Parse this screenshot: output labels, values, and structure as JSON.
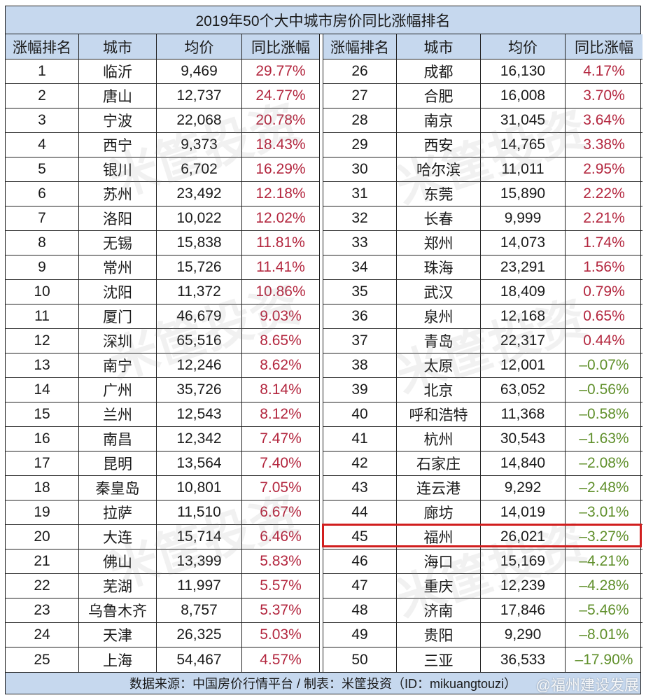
{
  "title": "2019年50个大中城市房价同比涨幅排名",
  "headers": [
    "涨幅排名",
    "城市",
    "均价",
    "同比涨幅"
  ],
  "colors": {
    "header_bg": "#c6d8ee",
    "positive": "#b3263e",
    "negative": "#5f8f2a",
    "highlight_border": "#d11e1e"
  },
  "left_rows": [
    {
      "rank": "1",
      "city": "临沂",
      "price": "9,469",
      "change": "29.77%",
      "sign": "pos"
    },
    {
      "rank": "2",
      "city": "唐山",
      "price": "12,737",
      "change": "24.77%",
      "sign": "pos"
    },
    {
      "rank": "3",
      "city": "宁波",
      "price": "22,068",
      "change": "20.78%",
      "sign": "pos"
    },
    {
      "rank": "4",
      "city": "西宁",
      "price": "9,373",
      "change": "18.43%",
      "sign": "pos"
    },
    {
      "rank": "5",
      "city": "银川",
      "price": "6,702",
      "change": "16.29%",
      "sign": "pos"
    },
    {
      "rank": "6",
      "city": "苏州",
      "price": "23,492",
      "change": "12.18%",
      "sign": "pos"
    },
    {
      "rank": "7",
      "city": "洛阳",
      "price": "10,022",
      "change": "12.02%",
      "sign": "pos"
    },
    {
      "rank": "8",
      "city": "无锡",
      "price": "15,838",
      "change": "11.81%",
      "sign": "pos"
    },
    {
      "rank": "9",
      "city": "常州",
      "price": "15,726",
      "change": "11.41%",
      "sign": "pos"
    },
    {
      "rank": "10",
      "city": "沈阳",
      "price": "11,372",
      "change": "10.86%",
      "sign": "pos"
    },
    {
      "rank": "11",
      "city": "厦门",
      "price": "46,679",
      "change": "9.03%",
      "sign": "pos"
    },
    {
      "rank": "12",
      "city": "深圳",
      "price": "65,516",
      "change": "8.65%",
      "sign": "pos"
    },
    {
      "rank": "13",
      "city": "南宁",
      "price": "12,246",
      "change": "8.62%",
      "sign": "pos"
    },
    {
      "rank": "14",
      "city": "广州",
      "price": "35,726",
      "change": "8.14%",
      "sign": "pos"
    },
    {
      "rank": "15",
      "city": "兰州",
      "price": "12,543",
      "change": "8.12%",
      "sign": "pos"
    },
    {
      "rank": "16",
      "city": "南昌",
      "price": "12,342",
      "change": "7.47%",
      "sign": "pos"
    },
    {
      "rank": "17",
      "city": "昆明",
      "price": "13,564",
      "change": "7.40%",
      "sign": "pos"
    },
    {
      "rank": "18",
      "city": "秦皇岛",
      "price": "10,801",
      "change": "7.05%",
      "sign": "pos"
    },
    {
      "rank": "19",
      "city": "拉萨",
      "price": "11,510",
      "change": "6.67%",
      "sign": "pos"
    },
    {
      "rank": "20",
      "city": "大连",
      "price": "15,714",
      "change": "6.46%",
      "sign": "pos"
    },
    {
      "rank": "21",
      "city": "佛山",
      "price": "13,399",
      "change": "5.83%",
      "sign": "pos"
    },
    {
      "rank": "22",
      "city": "芜湖",
      "price": "11,997",
      "change": "5.57%",
      "sign": "pos"
    },
    {
      "rank": "23",
      "city": "乌鲁木齐",
      "price": "8,757",
      "change": "5.37%",
      "sign": "pos"
    },
    {
      "rank": "24",
      "city": "天津",
      "price": "26,325",
      "change": "5.03%",
      "sign": "pos"
    },
    {
      "rank": "25",
      "city": "上海",
      "price": "54,467",
      "change": "4.57%",
      "sign": "pos"
    }
  ],
  "right_rows": [
    {
      "rank": "26",
      "city": "成都",
      "price": "16,130",
      "change": "4.17%",
      "sign": "pos"
    },
    {
      "rank": "27",
      "city": "合肥",
      "price": "16,008",
      "change": "3.70%",
      "sign": "pos"
    },
    {
      "rank": "28",
      "city": "南京",
      "price": "31,045",
      "change": "3.64%",
      "sign": "pos"
    },
    {
      "rank": "29",
      "city": "西安",
      "price": "14,765",
      "change": "3.38%",
      "sign": "pos"
    },
    {
      "rank": "30",
      "city": "哈尔滨",
      "price": "11,011",
      "change": "2.95%",
      "sign": "pos"
    },
    {
      "rank": "31",
      "city": "东莞",
      "price": "15,890",
      "change": "2.22%",
      "sign": "pos"
    },
    {
      "rank": "32",
      "city": "长春",
      "price": "9,999",
      "change": "2.21%",
      "sign": "pos"
    },
    {
      "rank": "33",
      "city": "郑州",
      "price": "14,073",
      "change": "1.74%",
      "sign": "pos"
    },
    {
      "rank": "34",
      "city": "珠海",
      "price": "23,291",
      "change": "1.56%",
      "sign": "pos"
    },
    {
      "rank": "35",
      "city": "武汉",
      "price": "18,409",
      "change": "0.79%",
      "sign": "pos"
    },
    {
      "rank": "36",
      "city": "泉州",
      "price": "12,168",
      "change": "0.65%",
      "sign": "pos"
    },
    {
      "rank": "37",
      "city": "青岛",
      "price": "22,317",
      "change": "0.44%",
      "sign": "pos"
    },
    {
      "rank": "38",
      "city": "太原",
      "price": "12,001",
      "change": "–0.07%",
      "sign": "neg"
    },
    {
      "rank": "39",
      "city": "北京",
      "price": "63,052",
      "change": "–0.56%",
      "sign": "neg"
    },
    {
      "rank": "40",
      "city": "呼和浩特",
      "price": "11,368",
      "change": "–0.58%",
      "sign": "neg"
    },
    {
      "rank": "41",
      "city": "杭州",
      "price": "30,543",
      "change": "–1.63%",
      "sign": "neg"
    },
    {
      "rank": "42",
      "city": "石家庄",
      "price": "14,840",
      "change": "–2.08%",
      "sign": "neg"
    },
    {
      "rank": "43",
      "city": "连云港",
      "price": "9,292",
      "change": "–2.48%",
      "sign": "neg"
    },
    {
      "rank": "44",
      "city": "廊坊",
      "price": "14,019",
      "change": "–3.01%",
      "sign": "neg"
    },
    {
      "rank": "45",
      "city": "福州",
      "price": "26,021",
      "change": "–3.27%",
      "sign": "neg",
      "highlighted": true
    },
    {
      "rank": "46",
      "city": "海口",
      "price": "15,169",
      "change": "–4.21%",
      "sign": "neg"
    },
    {
      "rank": "47",
      "city": "重庆",
      "price": "12,239",
      "change": "–4.28%",
      "sign": "neg"
    },
    {
      "rank": "48",
      "city": "济南",
      "price": "17,846",
      "change": "–5.46%",
      "sign": "neg"
    },
    {
      "rank": "49",
      "city": "贵阳",
      "price": "9,290",
      "change": "–8.01%",
      "sign": "neg"
    },
    {
      "rank": "50",
      "city": "三亚",
      "price": "36,533",
      "change": "–17.90%",
      "sign": "neg"
    }
  ],
  "footer": {
    "source": "数据来源：中国房价行情平台 / 制表：米筐投资（ID：mikuangtouzi）",
    "weibo_watermark": "@福州建设发展"
  },
  "watermark_text": "米筐投资"
}
